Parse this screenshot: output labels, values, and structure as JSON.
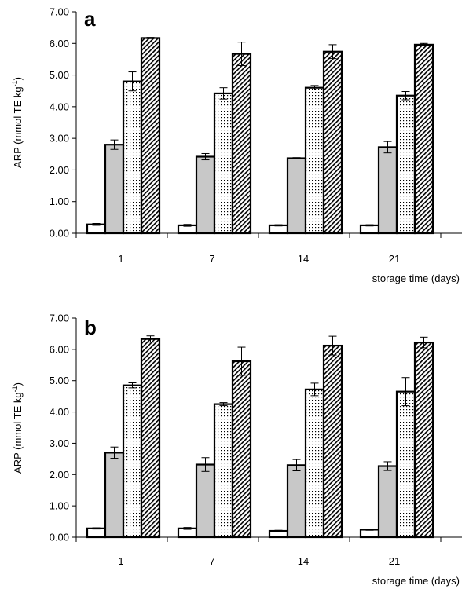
{
  "chart_data": [
    {
      "type": "bar",
      "panel_label": "a",
      "xlabel": "storage time (days)",
      "ylabel": "ARP (mmol TE kg",
      "ylabel_sup": "-1",
      "ylabel_close": ")",
      "ylim": [
        0,
        7
      ],
      "yticks": [
        "0.00",
        "1.00",
        "2.00",
        "3.00",
        "4.00",
        "5.00",
        "6.00",
        "7.00"
      ],
      "categories": [
        "1",
        "7",
        "14",
        "21"
      ],
      "grid": false,
      "series": [
        {
          "values": [
            0.28,
            0.25,
            0.25,
            0.25
          ],
          "errors": [
            0.03,
            0.03,
            0.02,
            0.02
          ],
          "fill": "white"
        },
        {
          "values": [
            2.8,
            2.42,
            2.37,
            2.72
          ],
          "errors": [
            0.15,
            0.1,
            0.02,
            0.18
          ],
          "fill": "#c8c8c8"
        },
        {
          "values": [
            4.8,
            4.42,
            4.6,
            4.35
          ],
          "errors": [
            0.3,
            0.18,
            0.07,
            0.13
          ],
          "fill": "dots"
        },
        {
          "values": [
            6.17,
            5.67,
            5.74,
            5.96
          ],
          "errors": [
            0.02,
            0.37,
            0.22,
            0.04
          ],
          "fill": "hatch"
        }
      ]
    },
    {
      "type": "bar",
      "panel_label": "b",
      "xlabel": "storage time (days)",
      "ylabel": "ARP (mmol TE kg",
      "ylabel_sup": "-1",
      "ylabel_close": ")",
      "ylim": [
        0,
        7
      ],
      "yticks": [
        "0.00",
        "1.00",
        "2.00",
        "3.00",
        "4.00",
        "5.00",
        "6.00",
        "7.00"
      ],
      "categories": [
        "1",
        "7",
        "14",
        "21"
      ],
      "grid": false,
      "series": [
        {
          "values": [
            0.28,
            0.28,
            0.2,
            0.24
          ],
          "errors": [
            0.02,
            0.03,
            0.02,
            0.02
          ],
          "fill": "white"
        },
        {
          "values": [
            2.7,
            2.32,
            2.3,
            2.27
          ],
          "errors": [
            0.18,
            0.22,
            0.18,
            0.14
          ],
          "fill": "#c8c8c8"
        },
        {
          "values": [
            4.85,
            4.25,
            4.72,
            4.65
          ],
          "errors": [
            0.08,
            0.05,
            0.2,
            0.45
          ],
          "fill": "dots"
        },
        {
          "values": [
            6.33,
            5.62,
            6.12,
            6.22
          ],
          "errors": [
            0.1,
            0.45,
            0.3,
            0.17
          ],
          "fill": "hatch"
        }
      ]
    }
  ]
}
